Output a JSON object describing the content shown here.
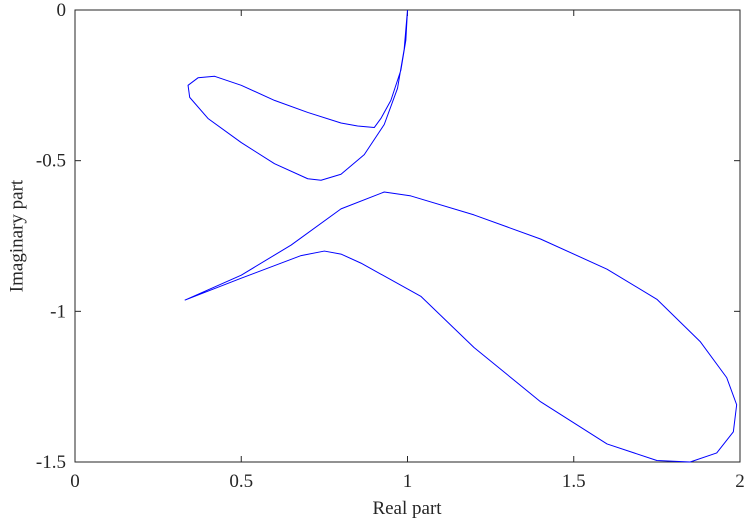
{
  "chart_data": {
    "type": "line",
    "xlabel": "Real part",
    "ylabel": "Imaginary part",
    "xlim": [
      0,
      2
    ],
    "ylim": [
      -1.5,
      0
    ],
    "xticks": [
      0,
      0.5,
      1,
      1.5,
      2
    ],
    "yticks": [
      -1.5,
      -1,
      -0.5,
      0
    ],
    "box": true,
    "series": [
      {
        "color": "#0000ff",
        "x": [
          1.0,
          0.995,
          0.98,
          0.95,
          0.92,
          0.9,
          0.85,
          0.8,
          0.7,
          0.6,
          0.5,
          0.42,
          0.37,
          0.34,
          0.345,
          0.4,
          0.5,
          0.6,
          0.7,
          0.74,
          0.8,
          0.87,
          0.93,
          0.97,
          0.99,
          1.0
        ],
        "values": [
          0,
          -0.1,
          -0.2,
          -0.3,
          -0.36,
          -0.39,
          -0.385,
          -0.375,
          -0.34,
          -0.3,
          -0.25,
          -0.22,
          -0.225,
          -0.25,
          -0.29,
          -0.36,
          -0.44,
          -0.51,
          -0.56,
          -0.565,
          -0.545,
          -0.48,
          -0.38,
          -0.26,
          -0.13,
          0
        ]
      },
      {
        "color": "#0000ff",
        "x": [
          0.33,
          0.5,
          0.65,
          0.8,
          0.93,
          1.01,
          1.2,
          1.4,
          1.6,
          1.75,
          1.88,
          1.96,
          1.99,
          1.98,
          1.93,
          1.85,
          1.75,
          1.6,
          1.4,
          1.2,
          1.04,
          0.86,
          0.8,
          0.75,
          0.68,
          0.5,
          0.33
        ],
        "values": [
          -0.963,
          -0.88,
          -0.78,
          -0.66,
          -0.604,
          -0.617,
          -0.68,
          -0.76,
          -0.86,
          -0.96,
          -1.1,
          -1.22,
          -1.31,
          -1.4,
          -1.47,
          -1.5,
          -1.495,
          -1.44,
          -1.3,
          -1.12,
          -0.95,
          -0.84,
          -0.81,
          -0.8,
          -0.815,
          -0.89,
          -0.963
        ]
      }
    ]
  }
}
